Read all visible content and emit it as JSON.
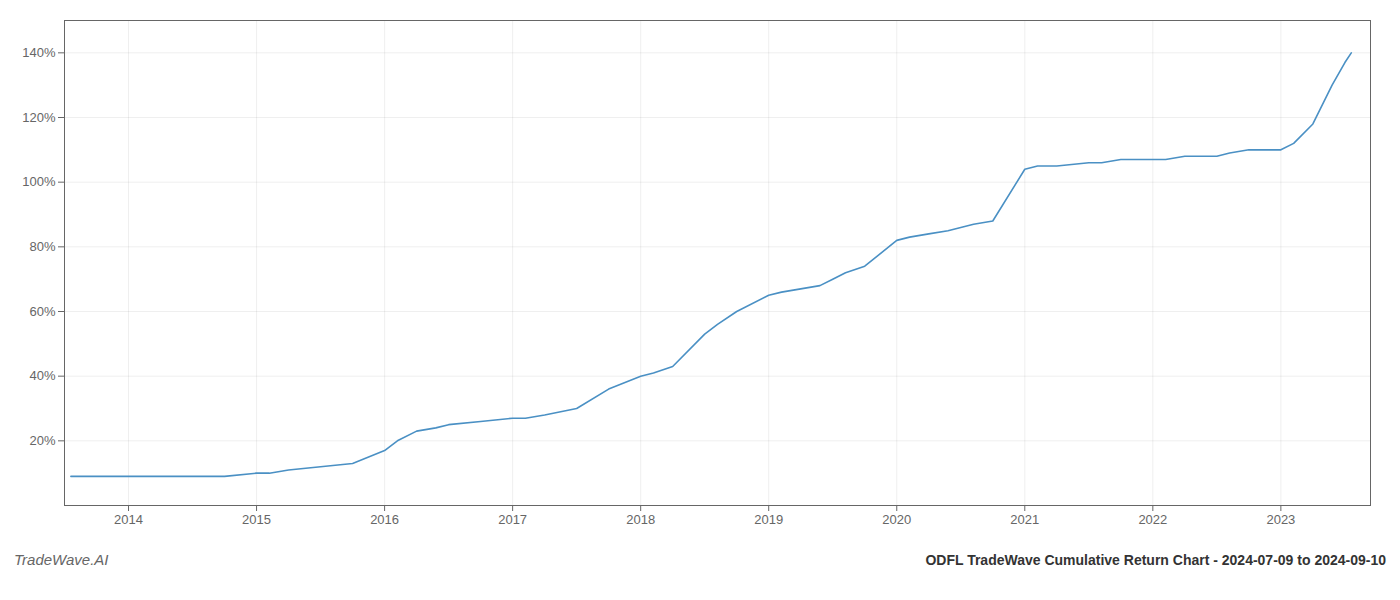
{
  "chart_data": {
    "type": "line",
    "title": "ODFL TradeWave Cumulative Return Chart - 2024-07-09 to 2024-09-10",
    "annotations": [
      "TradeWave.AI"
    ],
    "color": "#4a90c4",
    "x": [
      2013.55,
      2013.75,
      2014.0,
      2014.25,
      2014.5,
      2014.75,
      2015.0,
      2015.1,
      2015.25,
      2015.5,
      2015.75,
      2016.0,
      2016.1,
      2016.25,
      2016.4,
      2016.5,
      2016.75,
      2017.0,
      2017.1,
      2017.25,
      2017.5,
      2017.75,
      2018.0,
      2018.1,
      2018.25,
      2018.5,
      2018.6,
      2018.75,
      2019.0,
      2019.1,
      2019.25,
      2019.4,
      2019.5,
      2019.6,
      2019.75,
      2020.0,
      2020.1,
      2020.25,
      2020.4,
      2020.5,
      2020.6,
      2020.75,
      2021.0,
      2021.1,
      2021.25,
      2021.5,
      2021.6,
      2021.75,
      2022.0,
      2022.1,
      2022.25,
      2022.5,
      2022.6,
      2022.75,
      2023.0,
      2023.1,
      2023.25,
      2023.4,
      2023.5,
      2023.55
    ],
    "values": [
      9,
      9,
      9,
      9,
      9,
      9,
      10,
      10,
      11,
      12,
      13,
      17,
      20,
      23,
      24,
      25,
      26,
      27,
      27,
      28,
      30,
      36,
      40,
      41,
      43,
      53,
      56,
      60,
      65,
      66,
      67,
      68,
      70,
      72,
      74,
      82,
      83,
      84,
      85,
      86,
      87,
      88,
      104,
      105,
      105,
      106,
      106,
      107,
      107,
      107,
      108,
      108,
      109,
      110,
      110,
      112,
      118,
      130,
      137,
      140
    ],
    "xlim": [
      2013.5,
      2023.7
    ],
    "ylim": [
      0,
      150
    ],
    "xticks": [
      2014,
      2015,
      2016,
      2017,
      2018,
      2019,
      2020,
      2021,
      2022,
      2023
    ],
    "yticks": [
      {
        "value": 20,
        "label": "20%"
      },
      {
        "value": 40,
        "label": "40%"
      },
      {
        "value": 60,
        "label": "60%"
      },
      {
        "value": 80,
        "label": "80%"
      },
      {
        "value": 100,
        "label": "100%"
      },
      {
        "value": 120,
        "label": "120%"
      },
      {
        "value": 140,
        "label": "140%"
      }
    ],
    "grid": true
  }
}
